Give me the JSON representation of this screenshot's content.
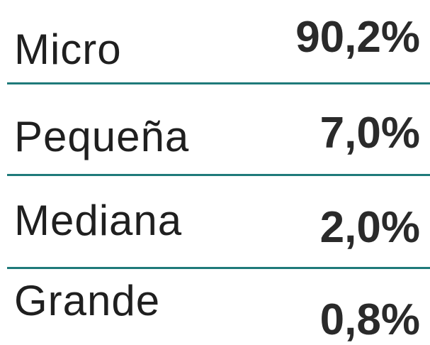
{
  "table": {
    "rows": [
      [
        "Micro",
        "90,2%"
      ],
      [
        "Pequeña",
        "7,0%"
      ],
      [
        "Mediana",
        "2,0%"
      ],
      [
        "Grande",
        "0,8%"
      ]
    ]
  }
}
